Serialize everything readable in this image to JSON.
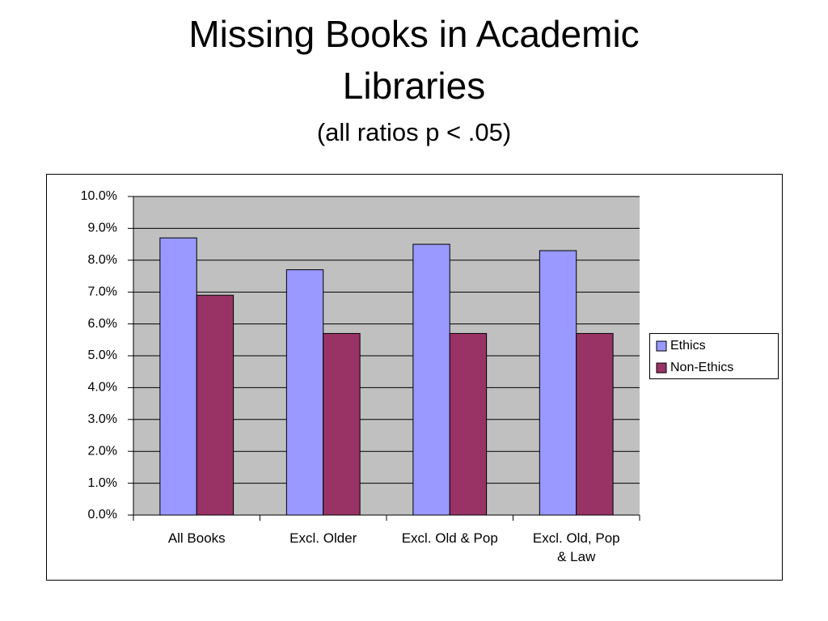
{
  "chart_data": {
    "type": "bar",
    "title": "Missing Books in Academic Libraries",
    "subtitle": "(all ratios p < .05)",
    "categories": [
      "All Books",
      "Excl. Older",
      "Excl. Old & Pop",
      "Excl. Old, Pop & Law"
    ],
    "series": [
      {
        "name": "Ethics",
        "color": "#9999ff",
        "values": [
          8.7,
          7.7,
          8.5,
          8.3
        ]
      },
      {
        "name": "Non-Ethics",
        "color": "#993366",
        "values": [
          6.9,
          5.7,
          5.7,
          5.7
        ]
      }
    ],
    "ylim": [
      0,
      10
    ],
    "yticks": [
      {
        "value": 0,
        "label": "0.0%"
      },
      {
        "value": 1,
        "label": "1.0%"
      },
      {
        "value": 2,
        "label": "2.0%"
      },
      {
        "value": 3,
        "label": "3.0%"
      },
      {
        "value": 4,
        "label": "4.0%"
      },
      {
        "value": 5,
        "label": "5.0%"
      },
      {
        "value": 6,
        "label": "6.0%"
      },
      {
        "value": 7,
        "label": "7.0%"
      },
      {
        "value": 8,
        "label": "8.0%"
      },
      {
        "value": 9,
        "label": "9.0%"
      },
      {
        "value": 10,
        "label": "10.0%"
      }
    ],
    "grid": true,
    "legend": "right",
    "plot_background": "#c0c0c0"
  }
}
